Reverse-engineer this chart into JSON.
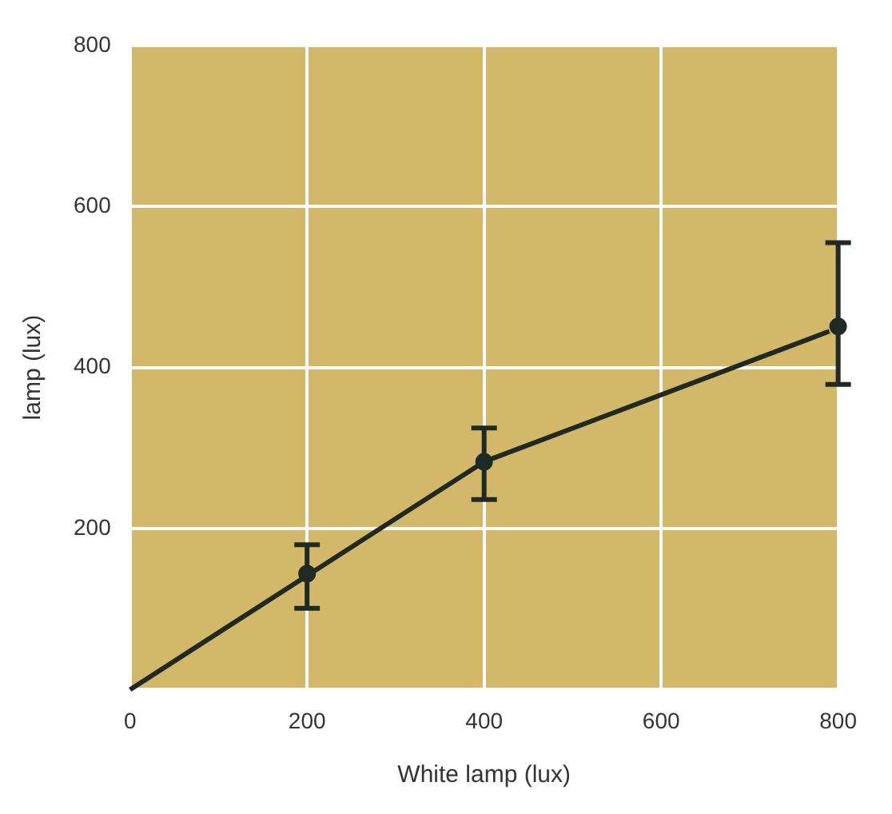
{
  "chart_data": {
    "type": "scatter",
    "xlabel": "White lamp (lux)",
    "ylabel": "lamp (lux)",
    "xlim": [
      0,
      800
    ],
    "ylim": [
      0,
      800
    ],
    "xticks": [
      0,
      200,
      400,
      600,
      800
    ],
    "yticks": [
      {
        "value": 0,
        "label": null
      },
      200,
      400,
      600,
      800
    ],
    "grid": true,
    "legend": false,
    "marker": "circle",
    "series": [
      {
        "color": "#1f2a24",
        "x": [
          200,
          400,
          800
        ],
        "values": [
          144,
          283,
          451
        ],
        "errors": [
          [
            101,
            180
          ],
          [
            236,
            325
          ],
          [
            379,
            555
          ]
        ]
      },
      {
        "type": "line",
        "color": "#1f2a24",
        "marker": "none",
        "line_style": "solid",
        "x": [
          0,
          400,
          790
        ],
        "values": [
          0,
          283,
          445
        ]
      }
    ]
  }
}
